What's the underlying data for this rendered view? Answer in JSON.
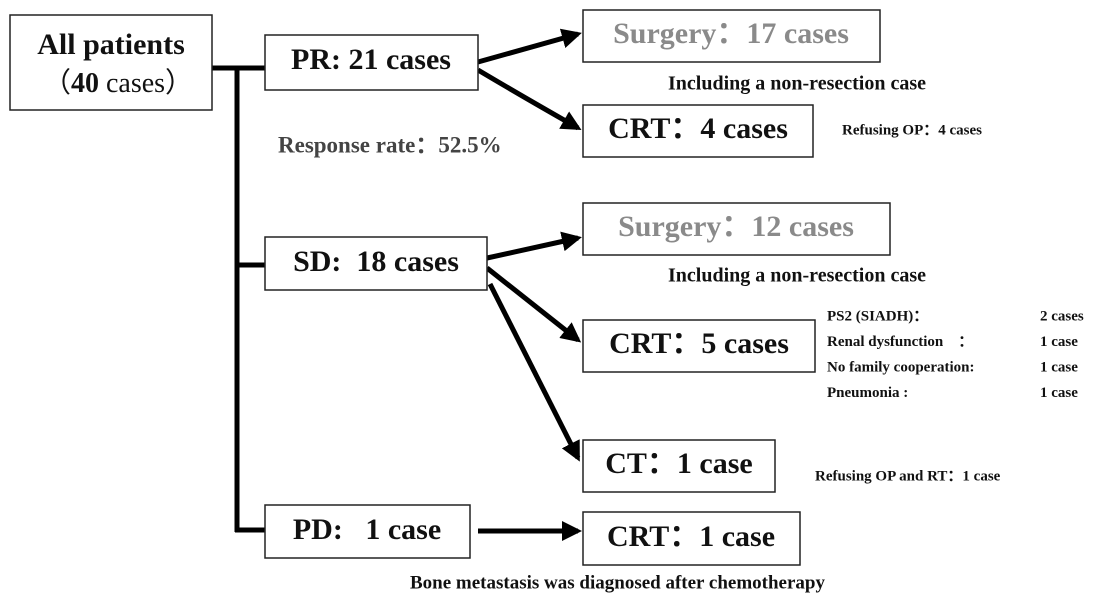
{
  "root": {
    "line1": "All patients",
    "line2_parts": [
      "（",
      "40",
      " cases）"
    ]
  },
  "nodes": {
    "pr": "PR: 21 cases",
    "sd": "SD:  18 cases",
    "pd": "PD:   1 case",
    "pr_surgery": "Surgery：17 cases",
    "pr_crt": "CRT：4 cases",
    "sd_surgery": "Surgery：12 cases",
    "sd_crt": "CRT：5 cases",
    "sd_ct": "CT：1 case",
    "pd_crt": "CRT：1 case"
  },
  "notes": {
    "pr_surgery_note": "Including a non-resection case",
    "response_rate": "Response rate：52.5%",
    "pr_crt_note": "Refusing OP：4 cases",
    "sd_surgery_note": "Including a non-resection case",
    "sd_crt_reasons": [
      [
        "PS2 (SIADH)：",
        "2 cases"
      ],
      [
        "Renal dysfunction　：",
        "1 case"
      ],
      [
        "No family cooperation:",
        "1 case"
      ],
      [
        "Pneumonia :",
        "1 case"
      ]
    ],
    "sd_ct_note": "Refusing OP and RT：1 case",
    "pd_crt_note": "Bone metastasis was diagnosed after chemotherapy"
  }
}
